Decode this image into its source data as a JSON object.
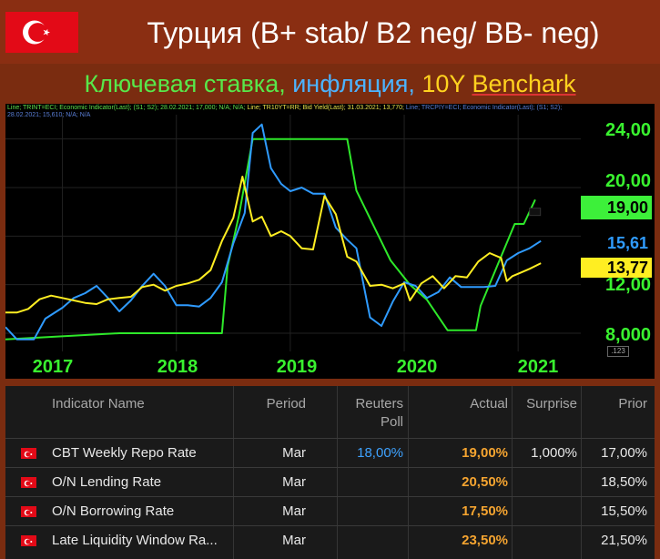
{
  "header": {
    "title": "Турция (B+ stab/ B2 neg/ BB- neg)"
  },
  "subtitle": {
    "part1": "Ключевая ставка, ",
    "part2": "инфляция, ",
    "part3": "10Y ",
    "part4": "Benchark"
  },
  "legend": {
    "line1": "Line; TRINT=ECI; Economic Indicator(Last); (S1; S2); 28.02.2021; 17,000; N/A; N/A;",
    "line1b": "Line; TR10YT=RR; Bid Yield(Last); 31.03.2021; 13,770;",
    "line1c": "Line; TRCPIY=ECI; Economic Indicator(Last); (S1; S2);",
    "line2": "28.02.2021; 15,610; N/A; N/A"
  },
  "colors": {
    "policy_rate": "#2ee82a",
    "inflation": "#2f9bff",
    "bond": "#ffee22",
    "grid": "#222222"
  },
  "chart_data": {
    "type": "line",
    "xlim": [
      2016.5,
      2021.55
    ],
    "ylim": [
      6.5,
      26
    ],
    "xticks": [
      "2017",
      "2018",
      "2019",
      "2020",
      "2021"
    ],
    "yticks": [
      "24,00",
      "20,00",
      "12,00",
      "8,000"
    ],
    "series": [
      {
        "name": "policy_rate",
        "points": [
          [
            2016.5,
            7.5
          ],
          [
            2017.5,
            8.0
          ],
          [
            2018.4,
            8.0
          ],
          [
            2018.45,
            13.5
          ],
          [
            2018.55,
            17.75
          ],
          [
            2018.67,
            24.0
          ],
          [
            2019.5,
            24.0
          ],
          [
            2019.58,
            19.75
          ],
          [
            2019.75,
            16.5
          ],
          [
            2019.88,
            14.0
          ],
          [
            2020.05,
            12.0
          ],
          [
            2020.2,
            10.75
          ],
          [
            2020.38,
            8.25
          ],
          [
            2020.63,
            8.25
          ],
          [
            2020.67,
            10.25
          ],
          [
            2020.88,
            15.0
          ],
          [
            2020.97,
            17.0
          ],
          [
            2021.05,
            17.0
          ],
          [
            2021.15,
            19.0
          ]
        ]
      },
      {
        "name": "inflation",
        "points": [
          [
            2016.5,
            8.5
          ],
          [
            2016.6,
            7.5
          ],
          [
            2016.75,
            7.5
          ],
          [
            2016.85,
            9.2
          ],
          [
            2017.0,
            10.1
          ],
          [
            2017.1,
            10.9
          ],
          [
            2017.2,
            11.3
          ],
          [
            2017.3,
            11.9
          ],
          [
            2017.4,
            10.9
          ],
          [
            2017.5,
            9.8
          ],
          [
            2017.6,
            10.7
          ],
          [
            2017.7,
            11.9
          ],
          [
            2017.8,
            12.9
          ],
          [
            2017.9,
            11.9
          ],
          [
            2018.0,
            10.3
          ],
          [
            2018.1,
            10.3
          ],
          [
            2018.2,
            10.2
          ],
          [
            2018.3,
            10.9
          ],
          [
            2018.4,
            12.2
          ],
          [
            2018.5,
            15.4
          ],
          [
            2018.6,
            17.9
          ],
          [
            2018.67,
            24.5
          ],
          [
            2018.75,
            25.2
          ],
          [
            2018.83,
            21.6
          ],
          [
            2018.92,
            20.3
          ],
          [
            2019.0,
            19.7
          ],
          [
            2019.1,
            20.0
          ],
          [
            2019.2,
            19.5
          ],
          [
            2019.3,
            19.5
          ],
          [
            2019.4,
            16.7
          ],
          [
            2019.5,
            15.7
          ],
          [
            2019.58,
            15.0
          ],
          [
            2019.7,
            9.3
          ],
          [
            2019.8,
            8.6
          ],
          [
            2019.9,
            10.6
          ],
          [
            2020.0,
            12.2
          ],
          [
            2020.1,
            11.9
          ],
          [
            2020.2,
            10.9
          ],
          [
            2020.3,
            11.4
          ],
          [
            2020.4,
            12.6
          ],
          [
            2020.5,
            11.8
          ],
          [
            2020.6,
            11.8
          ],
          [
            2020.7,
            11.8
          ],
          [
            2020.8,
            11.9
          ],
          [
            2020.9,
            14.0
          ],
          [
            2021.0,
            14.6
          ],
          [
            2021.1,
            15.0
          ],
          [
            2021.2,
            15.6
          ]
        ]
      },
      {
        "name": "bond",
        "points": [
          [
            2016.5,
            9.7
          ],
          [
            2016.6,
            9.7
          ],
          [
            2016.7,
            10.0
          ],
          [
            2016.8,
            10.8
          ],
          [
            2016.9,
            11.1
          ],
          [
            2017.0,
            10.9
          ],
          [
            2017.1,
            10.7
          ],
          [
            2017.2,
            10.5
          ],
          [
            2017.3,
            10.4
          ],
          [
            2017.4,
            10.8
          ],
          [
            2017.5,
            10.9
          ],
          [
            2017.6,
            11.0
          ],
          [
            2017.7,
            11.8
          ],
          [
            2017.8,
            12.0
          ],
          [
            2017.9,
            11.5
          ],
          [
            2018.0,
            11.9
          ],
          [
            2018.1,
            12.1
          ],
          [
            2018.2,
            12.4
          ],
          [
            2018.3,
            13.2
          ],
          [
            2018.4,
            15.6
          ],
          [
            2018.5,
            17.5
          ],
          [
            2018.58,
            20.9
          ],
          [
            2018.67,
            17.2
          ],
          [
            2018.75,
            17.6
          ],
          [
            2018.83,
            16.0
          ],
          [
            2018.92,
            16.4
          ],
          [
            2019.0,
            16.0
          ],
          [
            2019.1,
            15.0
          ],
          [
            2019.2,
            14.9
          ],
          [
            2019.3,
            19.3
          ],
          [
            2019.4,
            17.8
          ],
          [
            2019.5,
            14.3
          ],
          [
            2019.58,
            13.9
          ],
          [
            2019.7,
            11.9
          ],
          [
            2019.8,
            12.0
          ],
          [
            2019.9,
            11.7
          ],
          [
            2020.0,
            12.1
          ],
          [
            2020.05,
            10.7
          ],
          [
            2020.15,
            12.1
          ],
          [
            2020.25,
            12.7
          ],
          [
            2020.35,
            11.7
          ],
          [
            2020.45,
            12.7
          ],
          [
            2020.55,
            12.6
          ],
          [
            2020.65,
            13.9
          ],
          [
            2020.75,
            14.6
          ],
          [
            2020.85,
            14.2
          ],
          [
            2020.9,
            12.3
          ],
          [
            2020.95,
            12.7
          ],
          [
            2021.0,
            12.9
          ],
          [
            2021.1,
            13.3
          ],
          [
            2021.2,
            13.77
          ]
        ]
      }
    ],
    "last_values": {
      "policy_rate": "19,00",
      "inflation": "15,61",
      "bond": "13,77"
    },
    "corner_label": ".123"
  },
  "table": {
    "headers": [
      "Indicator Name",
      "Period",
      "Reuters Poll",
      "Actual",
      "Surprise",
      "Prior"
    ],
    "rows": [
      {
        "name": "CBT Weekly Repo Rate",
        "period": "Mar",
        "poll": "18,00%",
        "actual": "19,00%",
        "surprise": "1,000%",
        "prior": "17,00%"
      },
      {
        "name": "O/N Lending Rate",
        "period": "Mar",
        "poll": "",
        "actual": "20,50%",
        "surprise": "",
        "prior": "18,50%"
      },
      {
        "name": "O/N Borrowing Rate",
        "period": "Mar",
        "poll": "",
        "actual": "17,50%",
        "surprise": "",
        "prior": "15,50%"
      },
      {
        "name": "Late Liquidity Window Ra...",
        "period": "Mar",
        "poll": "",
        "actual": "23,50%",
        "surprise": "",
        "prior": "21,50%"
      }
    ]
  }
}
